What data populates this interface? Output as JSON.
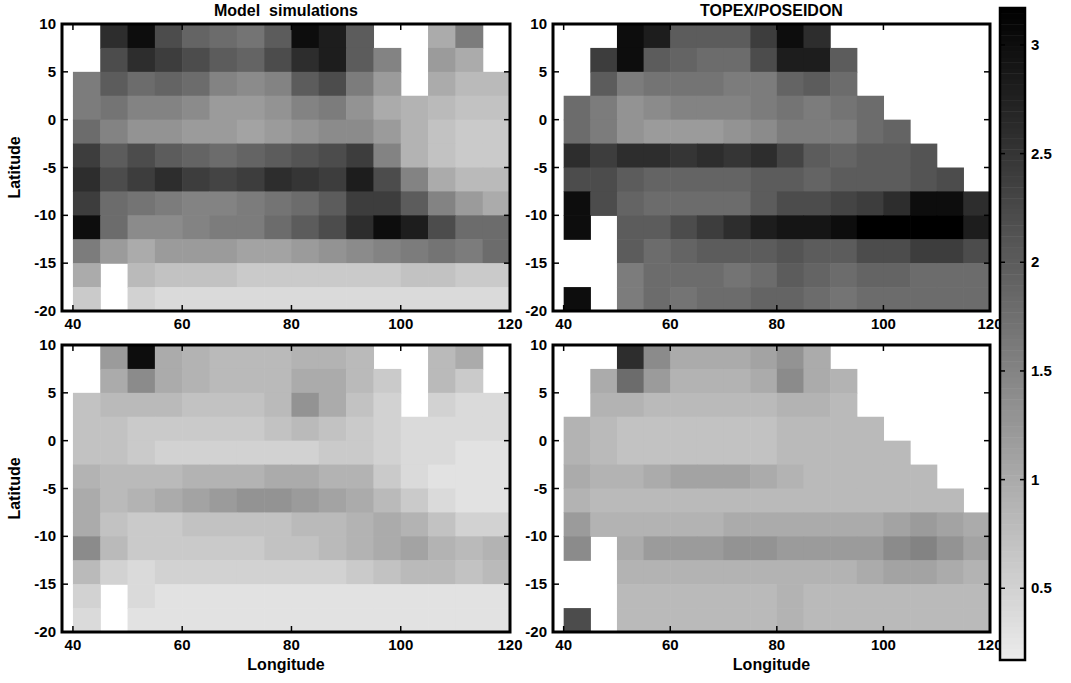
{
  "chart_data": {
    "type": "heatmap",
    "x": [
      42.5,
      47.5,
      52.5,
      57.5,
      62.5,
      67.5,
      72.5,
      77.5,
      82.5,
      87.5,
      92.5,
      97.5,
      102.5,
      107.5,
      112.5,
      117.5
    ],
    "y": [
      8.75,
      6.25,
      3.75,
      1.25,
      -1.25,
      -3.75,
      -6.25,
      -8.75,
      -11.25,
      -13.75,
      -16.25,
      -18.75
    ],
    "xlim": [
      38,
      120
    ],
    "ylim": [
      -20,
      10
    ],
    "xticks": [
      40,
      60,
      80,
      100,
      120
    ],
    "yticks": [
      -20,
      -15,
      -10,
      -5,
      0,
      5,
      10
    ],
    "colorbar": {
      "range": [
        0.17,
        3.17
      ],
      "ticks": [
        0.5,
        1,
        1.5,
        2,
        2.5,
        3
      ]
    },
    "panels": [
      {
        "title": "Model  simulations",
        "y_label": "Latitude",
        "values": [
          [
            null,
            2.6,
            3.0,
            2.2,
            1.9,
            1.8,
            1.7,
            2.0,
            3.0,
            2.8,
            2.0,
            null,
            null,
            1.0,
            1.6,
            null
          ],
          [
            null,
            2.2,
            2.6,
            2.4,
            2.2,
            2.0,
            1.9,
            2.2,
            2.6,
            2.8,
            2.0,
            1.5,
            null,
            1.2,
            1.0,
            null
          ],
          [
            1.6,
            2.0,
            1.8,
            1.9,
            1.8,
            1.5,
            1.4,
            1.5,
            2.0,
            2.2,
            1.6,
            1.2,
            null,
            1.0,
            0.8,
            0.8
          ],
          [
            1.6,
            1.7,
            1.5,
            1.5,
            1.4,
            1.2,
            1.2,
            1.3,
            1.5,
            1.6,
            1.3,
            1.0,
            0.9,
            0.8,
            0.7,
            0.7
          ],
          [
            1.8,
            1.5,
            1.3,
            1.3,
            1.2,
            1.2,
            1.1,
            1.2,
            1.3,
            1.4,
            1.4,
            1.2,
            0.9,
            0.7,
            0.6,
            0.6
          ],
          [
            2.4,
            2.0,
            2.2,
            2.0,
            1.9,
            1.8,
            1.9,
            2.0,
            2.1,
            2.2,
            2.4,
            1.5,
            0.9,
            0.7,
            0.6,
            0.6
          ],
          [
            2.6,
            2.2,
            2.4,
            2.6,
            2.4,
            2.3,
            2.4,
            2.6,
            2.5,
            2.4,
            2.8,
            2.2,
            1.5,
            1.0,
            0.8,
            0.8
          ],
          [
            2.4,
            1.8,
            1.7,
            1.6,
            1.5,
            1.5,
            1.6,
            1.7,
            1.8,
            2.0,
            2.4,
            2.4,
            2.0,
            1.5,
            1.2,
            1.0
          ],
          [
            3.0,
            1.8,
            1.4,
            1.4,
            1.5,
            1.6,
            1.6,
            1.8,
            2.0,
            2.2,
            2.6,
            3.0,
            2.8,
            2.2,
            1.8,
            1.8
          ],
          [
            1.6,
            1.2,
            1.0,
            1.2,
            1.2,
            1.2,
            1.1,
            1.1,
            1.2,
            1.3,
            1.4,
            1.5,
            1.6,
            1.7,
            1.6,
            1.8
          ],
          [
            1.0,
            null,
            0.8,
            0.7,
            0.7,
            0.7,
            0.6,
            0.6,
            0.6,
            0.6,
            0.6,
            0.6,
            0.7,
            0.7,
            0.6,
            0.6
          ],
          [
            0.6,
            null,
            0.5,
            0.4,
            0.4,
            0.4,
            0.4,
            0.4,
            0.4,
            0.4,
            0.4,
            0.4,
            0.4,
            0.4,
            0.4,
            0.4
          ]
        ]
      },
      {
        "title": "TOPEX/POSEIDON",
        "values": [
          [
            null,
            null,
            3.0,
            2.8,
            2.0,
            2.0,
            2.0,
            2.4,
            3.0,
            2.6,
            null,
            null,
            null,
            null,
            null,
            null
          ],
          [
            null,
            2.4,
            3.0,
            2.0,
            1.9,
            1.8,
            1.8,
            2.2,
            2.8,
            2.8,
            2.0,
            null,
            null,
            null,
            null,
            null
          ],
          [
            null,
            2.0,
            1.6,
            1.7,
            1.7,
            1.7,
            1.6,
            1.6,
            1.9,
            2.0,
            1.8,
            null,
            null,
            null,
            null,
            null
          ],
          [
            1.8,
            1.6,
            1.3,
            1.4,
            1.5,
            1.5,
            1.5,
            1.6,
            1.7,
            1.6,
            1.7,
            1.8,
            null,
            null,
            null,
            null
          ],
          [
            1.8,
            1.6,
            1.3,
            1.2,
            1.2,
            1.2,
            1.3,
            1.4,
            1.6,
            1.6,
            1.6,
            1.8,
            1.9,
            null,
            null,
            null
          ],
          [
            2.6,
            2.4,
            2.6,
            2.6,
            2.5,
            2.6,
            2.5,
            2.6,
            2.3,
            2.0,
            1.9,
            2.0,
            2.0,
            2.1,
            null,
            null
          ],
          [
            2.2,
            2.2,
            2.0,
            1.9,
            1.9,
            1.9,
            1.9,
            2.0,
            2.0,
            1.9,
            2.0,
            2.0,
            2.0,
            2.1,
            2.2,
            null
          ],
          [
            3.0,
            2.2,
            1.9,
            1.8,
            1.8,
            1.8,
            1.8,
            2.0,
            2.2,
            2.2,
            2.3,
            2.4,
            2.6,
            3.0,
            3.0,
            2.6
          ],
          [
            3.0,
            null,
            2.0,
            2.0,
            2.2,
            2.4,
            2.6,
            2.8,
            2.9,
            2.9,
            3.0,
            3.2,
            3.2,
            3.2,
            3.2,
            2.8
          ],
          [
            null,
            null,
            2.0,
            1.8,
            1.9,
            2.0,
            2.0,
            2.0,
            2.1,
            2.0,
            2.0,
            2.2,
            2.2,
            2.4,
            2.4,
            2.2
          ],
          [
            null,
            null,
            1.6,
            1.8,
            1.8,
            1.8,
            1.7,
            1.8,
            2.0,
            1.9,
            1.8,
            1.9,
            1.9,
            1.8,
            1.8,
            1.8
          ],
          [
            3.0,
            null,
            1.6,
            1.8,
            1.7,
            1.8,
            1.8,
            1.9,
            1.9,
            1.8,
            1.7,
            1.8,
            1.8,
            1.8,
            1.8,
            1.8
          ]
        ]
      },
      {
        "x_label": "Longitude",
        "y_label": "Latitude",
        "values": [
          [
            null,
            1.2,
            3.0,
            1.0,
            0.9,
            0.8,
            0.8,
            0.8,
            0.9,
            0.9,
            0.8,
            null,
            null,
            0.8,
            1.0,
            null
          ],
          [
            null,
            1.0,
            1.4,
            1.0,
            0.9,
            0.8,
            0.8,
            0.8,
            1.0,
            1.0,
            0.8,
            0.6,
            null,
            0.8,
            0.6,
            null
          ],
          [
            0.7,
            0.8,
            0.8,
            0.8,
            0.7,
            0.7,
            0.7,
            0.8,
            1.3,
            1.0,
            0.7,
            0.5,
            null,
            0.5,
            0.4,
            0.4
          ],
          [
            0.7,
            0.7,
            0.6,
            0.6,
            0.6,
            0.6,
            0.6,
            0.7,
            0.8,
            0.7,
            0.6,
            0.5,
            0.4,
            0.4,
            0.4,
            0.4
          ],
          [
            0.7,
            0.7,
            0.6,
            0.5,
            0.5,
            0.5,
            0.5,
            0.5,
            0.5,
            0.6,
            0.6,
            0.5,
            0.4,
            0.4,
            0.3,
            0.3
          ],
          [
            0.9,
            0.8,
            0.8,
            0.8,
            0.9,
            0.9,
            0.9,
            1.0,
            1.0,
            0.9,
            0.9,
            0.6,
            0.4,
            0.3,
            0.3,
            0.3
          ],
          [
            1.0,
            0.8,
            0.9,
            1.0,
            1.1,
            1.2,
            1.3,
            1.3,
            1.2,
            1.1,
            1.0,
            0.8,
            0.6,
            0.4,
            0.3,
            0.3
          ],
          [
            1.0,
            0.7,
            0.6,
            0.6,
            0.7,
            0.7,
            0.7,
            0.7,
            0.8,
            0.8,
            0.9,
            1.0,
            0.9,
            0.7,
            0.5,
            0.5
          ],
          [
            1.4,
            0.8,
            0.6,
            0.6,
            0.6,
            0.6,
            0.6,
            0.7,
            0.7,
            0.8,
            0.9,
            1.0,
            1.1,
            0.9,
            0.8,
            0.9
          ],
          [
            0.8,
            0.5,
            0.4,
            0.5,
            0.5,
            0.5,
            0.5,
            0.5,
            0.5,
            0.5,
            0.6,
            0.7,
            0.8,
            0.8,
            0.7,
            0.8
          ],
          [
            0.5,
            null,
            0.4,
            0.3,
            0.3,
            0.3,
            0.3,
            0.3,
            0.3,
            0.3,
            0.3,
            0.3,
            0.3,
            0.3,
            0.3,
            0.3
          ],
          [
            0.4,
            null,
            0.3,
            0.3,
            0.3,
            0.3,
            0.3,
            0.3,
            0.3,
            0.3,
            0.3,
            0.3,
            0.3,
            0.3,
            0.3,
            0.3
          ]
        ]
      },
      {
        "x_label": "Longitude",
        "values": [
          [
            null,
            null,
            2.6,
            1.4,
            1.0,
            1.0,
            1.0,
            1.1,
            1.3,
            1.0,
            null,
            null,
            null,
            null,
            null,
            null
          ],
          [
            null,
            1.0,
            1.8,
            1.2,
            0.9,
            0.9,
            0.9,
            1.0,
            1.4,
            1.0,
            0.9,
            null,
            null,
            null,
            null,
            null
          ],
          [
            null,
            0.9,
            0.9,
            0.8,
            0.8,
            0.8,
            0.8,
            0.8,
            0.9,
            0.9,
            0.8,
            null,
            null,
            null,
            null,
            null
          ],
          [
            0.9,
            0.8,
            0.7,
            0.7,
            0.7,
            0.7,
            0.7,
            0.7,
            0.8,
            0.8,
            0.8,
            0.8,
            null,
            null,
            null,
            null
          ],
          [
            0.9,
            0.8,
            0.7,
            0.7,
            0.7,
            0.7,
            0.7,
            0.7,
            0.8,
            0.8,
            0.8,
            0.8,
            0.8,
            null,
            null,
            null
          ],
          [
            1.0,
            0.9,
            0.9,
            1.0,
            1.1,
            1.1,
            1.1,
            1.0,
            0.9,
            0.8,
            0.8,
            0.8,
            0.8,
            0.8,
            null,
            null
          ],
          [
            0.9,
            0.8,
            0.8,
            0.8,
            0.8,
            0.8,
            0.8,
            0.8,
            0.8,
            0.8,
            0.8,
            0.8,
            0.8,
            0.8,
            0.8,
            null
          ],
          [
            1.2,
            0.9,
            0.9,
            0.9,
            0.9,
            0.9,
            1.0,
            1.0,
            1.0,
            1.0,
            1.0,
            1.0,
            1.1,
            1.2,
            1.1,
            1.0
          ],
          [
            1.4,
            null,
            1.0,
            1.2,
            1.2,
            1.2,
            1.3,
            1.3,
            1.2,
            1.2,
            1.2,
            1.2,
            1.4,
            1.5,
            1.3,
            1.1
          ],
          [
            null,
            null,
            0.9,
            0.9,
            0.9,
            0.9,
            0.9,
            0.9,
            0.9,
            0.9,
            0.9,
            1.0,
            1.1,
            1.1,
            1.0,
            0.9
          ],
          [
            null,
            null,
            0.8,
            0.8,
            0.8,
            0.8,
            0.8,
            0.8,
            0.9,
            0.8,
            0.8,
            0.8,
            0.8,
            0.8,
            0.8,
            0.8
          ],
          [
            2.2,
            null,
            0.8,
            0.8,
            0.8,
            0.8,
            0.8,
            0.8,
            0.9,
            0.8,
            0.8,
            0.8,
            0.8,
            0.8,
            0.8,
            0.8
          ]
        ]
      }
    ]
  }
}
